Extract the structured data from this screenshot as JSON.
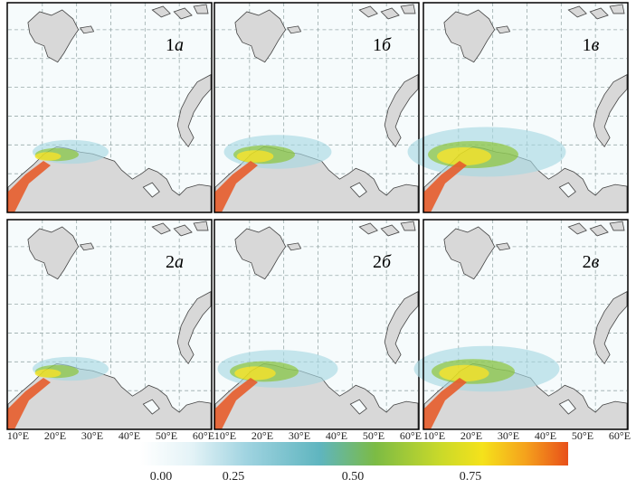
{
  "panels": [
    {
      "number": "1",
      "letter": "а"
    },
    {
      "number": "1",
      "letter": "б"
    },
    {
      "number": "1",
      "letter": "в"
    },
    {
      "number": "2",
      "letter": "а"
    },
    {
      "number": "2",
      "letter": "б"
    },
    {
      "number": "2",
      "letter": "в"
    }
  ],
  "x_tick_labels": [
    "10°E",
    "20°E",
    "30°E",
    "40°E",
    "50°E",
    "60°E"
  ],
  "colorbar": {
    "tick_labels": [
      "0.00",
      "0.25",
      "0.50",
      "0.75"
    ]
  }
}
